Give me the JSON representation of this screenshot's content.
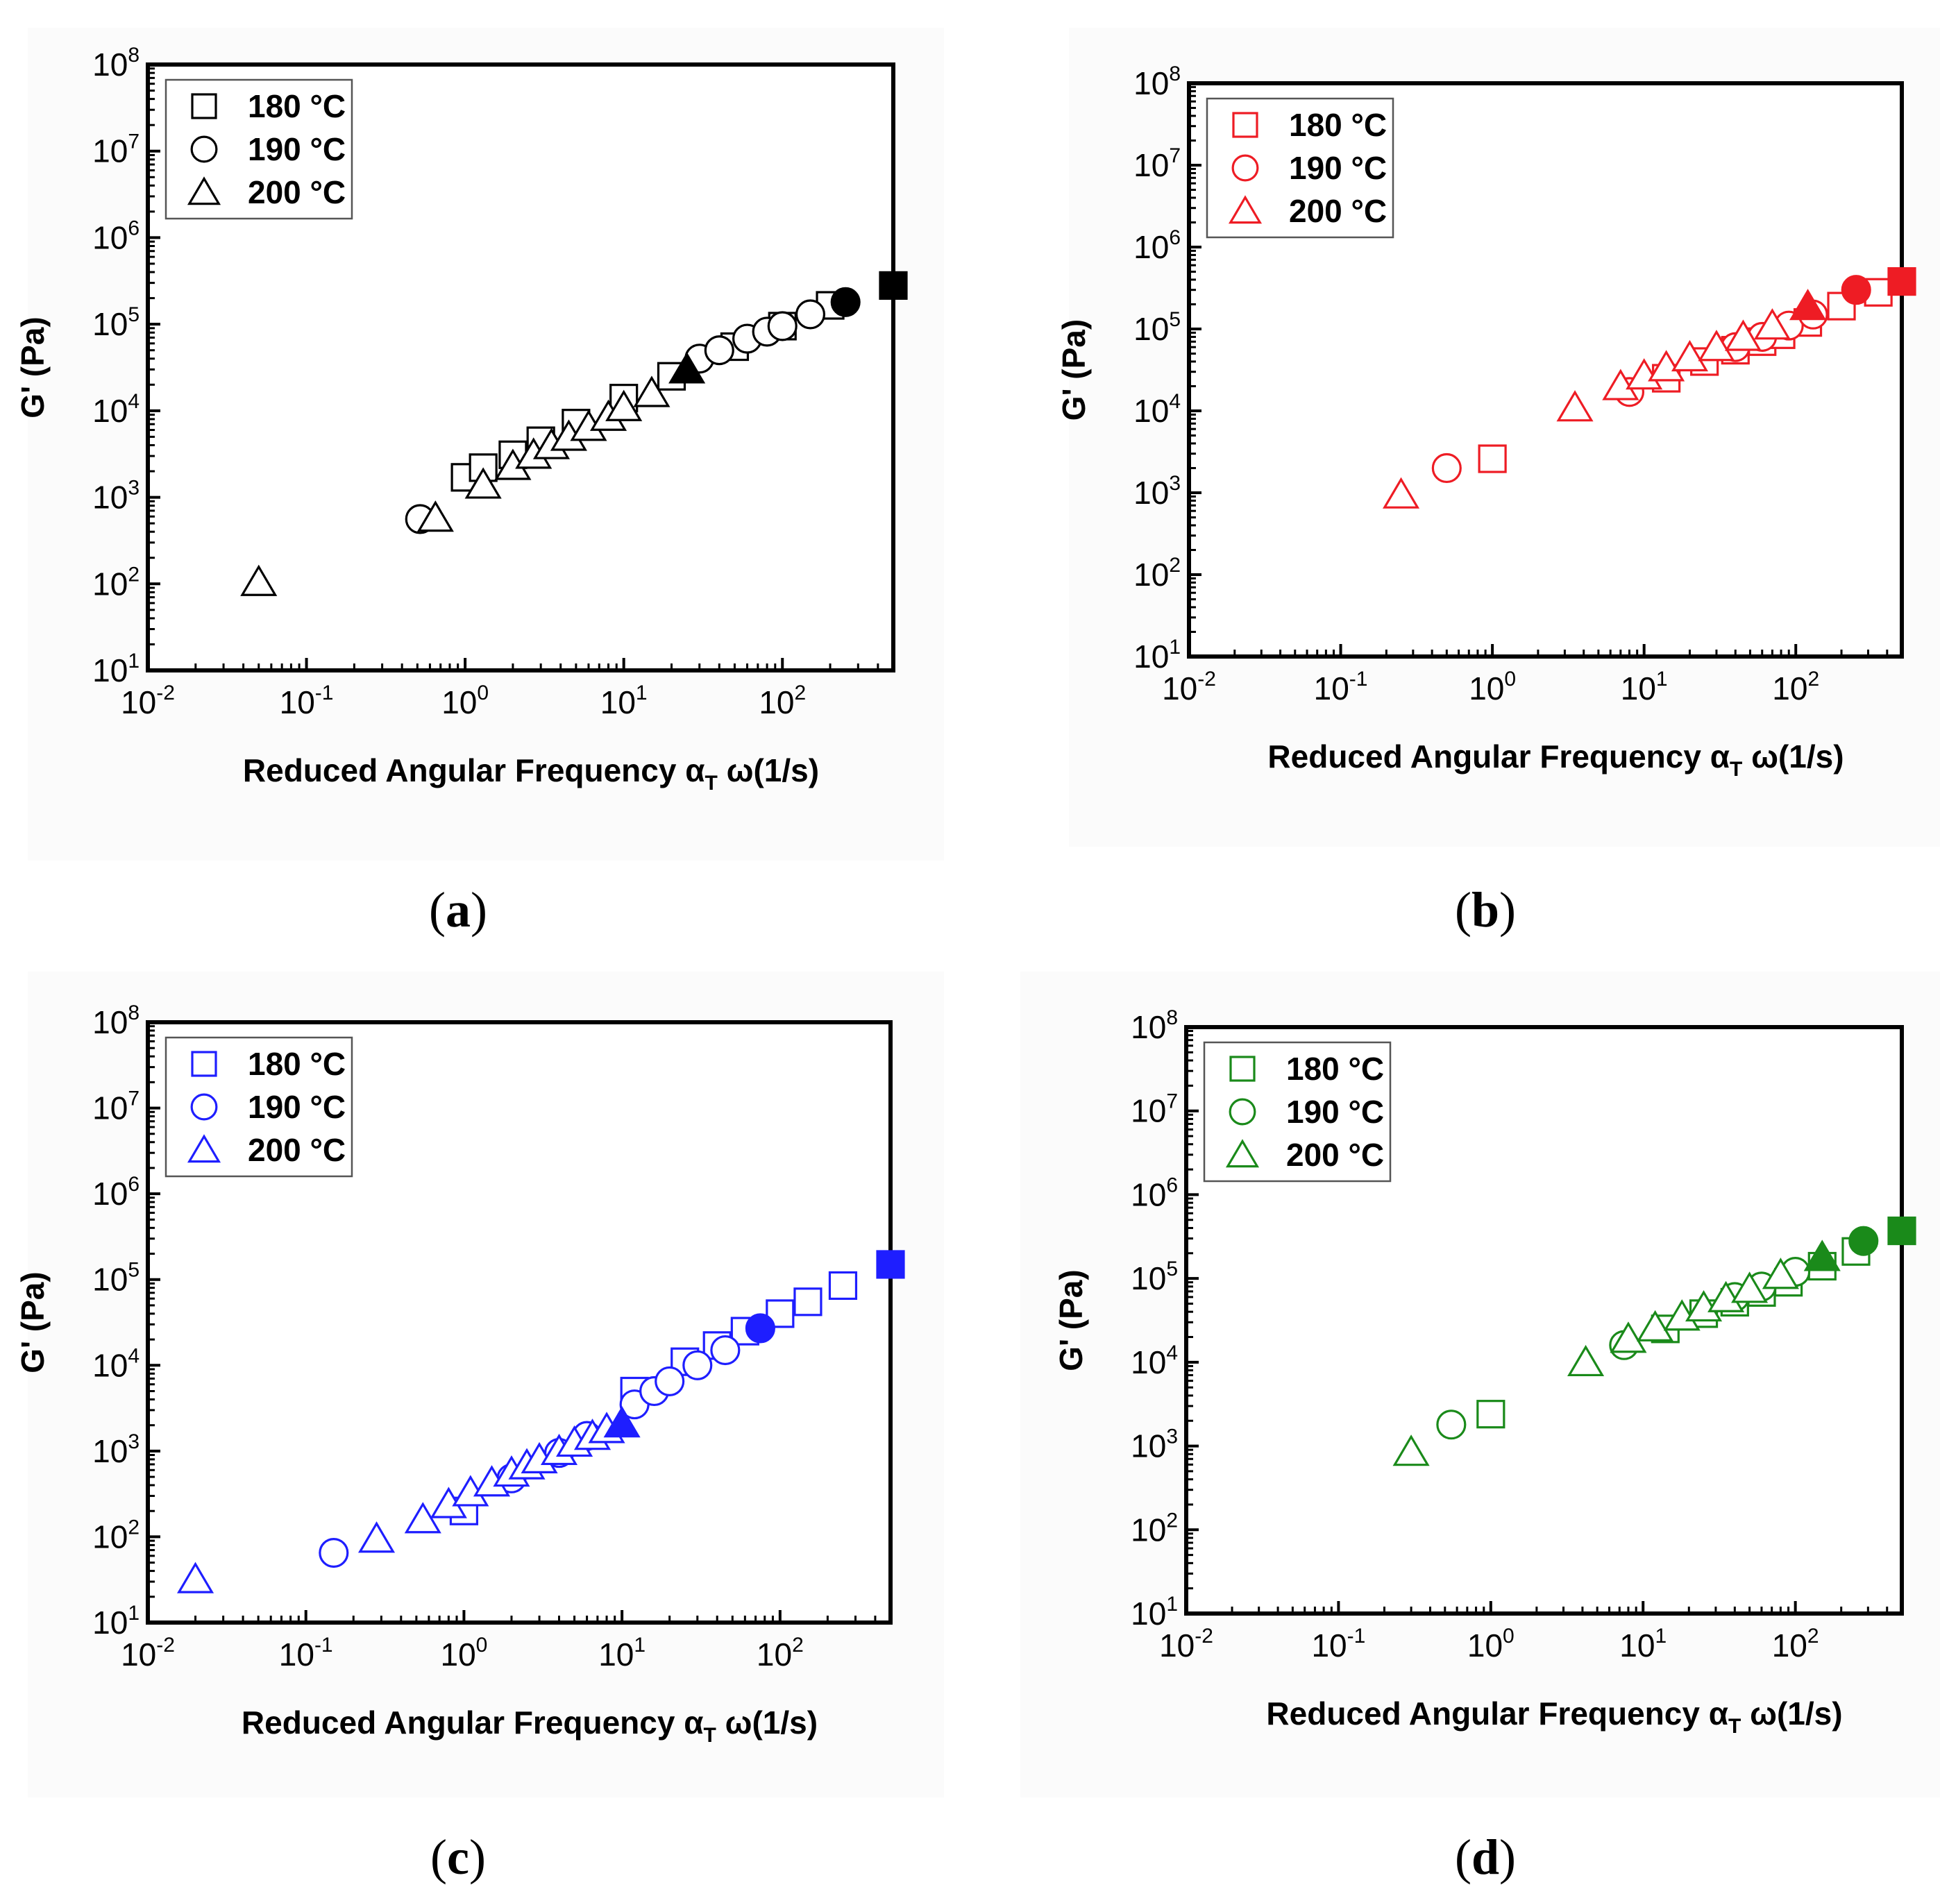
{
  "figure": {
    "caption_letters": [
      "a",
      "b",
      "c",
      "d"
    ]
  },
  "chart_data": [
    {
      "panel": "a",
      "type": "scatter",
      "xscale": "log",
      "yscale": "log",
      "xlim": [
        0.01,
        500
      ],
      "ylim": [
        10,
        100000000
      ],
      "xlabel_main": "Reduced Angular Frequency ",
      "xlabel_alpha": "α",
      "xlabel_sub": "T",
      "xlabel_rest": " ω(1/s)",
      "ylabel": "G' (Pa)",
      "xticks": [
        {
          "base": "10",
          "exp": "-2"
        },
        {
          "base": "10",
          "exp": "-1"
        },
        {
          "base": "10",
          "exp": "0"
        },
        {
          "base": "10",
          "exp": "1"
        },
        {
          "base": "10",
          "exp": "2"
        }
      ],
      "yticks": [
        {
          "base": "10",
          "exp": "1"
        },
        {
          "base": "10",
          "exp": "2"
        },
        {
          "base": "10",
          "exp": "3"
        },
        {
          "base": "10",
          "exp": "4"
        },
        {
          "base": "10",
          "exp": "5"
        },
        {
          "base": "10",
          "exp": "6"
        },
        {
          "base": "10",
          "exp": "7"
        },
        {
          "base": "10",
          "exp": "8"
        }
      ],
      "color": "#000000",
      "legend_position": "top-left",
      "series": [
        {
          "name": "180 °C",
          "marker": "square",
          "points": [
            [
              1,
              1700
            ],
            [
              1.3,
              2200
            ],
            [
              2,
              3100
            ],
            [
              3,
              4500
            ],
            [
              5,
              7200
            ],
            [
              10,
              14000
            ],
            [
              20,
              25000
            ],
            [
              50,
              55000
            ],
            [
              100,
              95000
            ],
            [
              200,
              165000
            ],
            [
              500,
              280000
            ]
          ]
        },
        {
          "name": "190 °C",
          "marker": "circle",
          "points": [
            [
              0.52,
              560
            ],
            [
              30,
              40000
            ],
            [
              40,
              50000
            ],
            [
              60,
              68000
            ],
            [
              80,
              82000
            ],
            [
              100,
              95000
            ],
            [
              150,
              130000
            ],
            [
              250,
              180000
            ]
          ]
        },
        {
          "name": "200 °C",
          "marker": "triangle",
          "points": [
            [
              0.05,
              105
            ],
            [
              0.65,
              580
            ],
            [
              1.3,
              1400
            ],
            [
              2,
              2300
            ],
            [
              2.7,
              3100
            ],
            [
              3.5,
              4000
            ],
            [
              4.5,
              5000
            ],
            [
              6,
              6500
            ],
            [
              8,
              8500
            ],
            [
              10,
              11000
            ],
            [
              15,
              16000
            ],
            [
              25,
              30000
            ]
          ]
        }
      ]
    },
    {
      "panel": "b",
      "type": "scatter",
      "xscale": "log",
      "yscale": "log",
      "xlim": [
        0.01,
        500
      ],
      "ylim": [
        10,
        100000000
      ],
      "xlabel_main": "Reduced Angular Frequency ",
      "xlabel_alpha": "α",
      "xlabel_sub": "T",
      "xlabel_rest": " ω(1/s)",
      "ylabel": "G' (Pa)",
      "xticks": [
        {
          "base": "10",
          "exp": "-2"
        },
        {
          "base": "10",
          "exp": "-1"
        },
        {
          "base": "10",
          "exp": "0"
        },
        {
          "base": "10",
          "exp": "1"
        },
        {
          "base": "10",
          "exp": "2"
        }
      ],
      "yticks": [
        {
          "base": "10",
          "exp": "1"
        },
        {
          "base": "10",
          "exp": "2"
        },
        {
          "base": "10",
          "exp": "3"
        },
        {
          "base": "10",
          "exp": "4"
        },
        {
          "base": "10",
          "exp": "5"
        },
        {
          "base": "10",
          "exp": "6"
        },
        {
          "base": "10",
          "exp": "7"
        },
        {
          "base": "10",
          "exp": "8"
        }
      ],
      "color": "#ee1c24",
      "legend_position": "top-left",
      "series": [
        {
          "name": "180 °C",
          "marker": "square",
          "points": [
            [
              1,
              2600
            ],
            [
              14,
              25000
            ],
            [
              25,
              40000
            ],
            [
              40,
              55000
            ],
            [
              60,
              70000
            ],
            [
              80,
              85000
            ],
            [
              120,
              120000
            ],
            [
              200,
              190000
            ],
            [
              350,
              280000
            ],
            [
              500,
              380000
            ]
          ]
        },
        {
          "name": "190 °C",
          "marker": "circle",
          "points": [
            [
              0.5,
              2000
            ],
            [
              8,
              17000
            ],
            [
              40,
              60000
            ],
            [
              60,
              80000
            ],
            [
              90,
              110000
            ],
            [
              130,
              150000
            ],
            [
              250,
              300000
            ]
          ]
        },
        {
          "name": "200 °C",
          "marker": "triangle",
          "points": [
            [
              0.25,
              950
            ],
            [
              3.5,
              11000
            ],
            [
              7,
              20000
            ],
            [
              10,
              27000
            ],
            [
              14,
              34000
            ],
            [
              20,
              45000
            ],
            [
              30,
              60000
            ],
            [
              45,
              80000
            ],
            [
              70,
              110000
            ],
            [
              120,
              190000
            ]
          ]
        }
      ]
    },
    {
      "panel": "c",
      "type": "scatter",
      "xscale": "log",
      "yscale": "log",
      "xlim": [
        0.01,
        500
      ],
      "ylim": [
        10,
        100000000
      ],
      "xlabel_main": "Reduced Angular Frequency ",
      "xlabel_alpha": "α",
      "xlabel_sub": "T",
      "xlabel_rest": " ω(1/s)",
      "ylabel": "G' (Pa)",
      "xticks": [
        {
          "base": "10",
          "exp": "-2"
        },
        {
          "base": "10",
          "exp": "-1"
        },
        {
          "base": "10",
          "exp": "0"
        },
        {
          "base": "10",
          "exp": "1"
        },
        {
          "base": "10",
          "exp": "2"
        }
      ],
      "yticks": [
        {
          "base": "10",
          "exp": "1"
        },
        {
          "base": "10",
          "exp": "2"
        },
        {
          "base": "10",
          "exp": "3"
        },
        {
          "base": "10",
          "exp": "4"
        },
        {
          "base": "10",
          "exp": "5"
        },
        {
          "base": "10",
          "exp": "6"
        },
        {
          "base": "10",
          "exp": "7"
        },
        {
          "base": "10",
          "exp": "8"
        }
      ],
      "color": "#1e1eff",
      "legend_position": "top-left",
      "series": [
        {
          "name": "180 °C",
          "marker": "square",
          "points": [
            [
              1,
              200
            ],
            [
              12,
              5000
            ],
            [
              25,
              11000
            ],
            [
              40,
              17000
            ],
            [
              60,
              25000
            ],
            [
              100,
              40000
            ],
            [
              150,
              55000
            ],
            [
              250,
              85000
            ],
            [
              500,
              150000
            ]
          ]
        },
        {
          "name": "190 °C",
          "marker": "circle",
          "points": [
            [
              0.15,
              65
            ],
            [
              2,
              480
            ],
            [
              4,
              950
            ],
            [
              6,
              1500
            ],
            [
              12,
              3500
            ],
            [
              16,
              5000
            ],
            [
              20,
              6500
            ],
            [
              30,
              10000
            ],
            [
              45,
              15000
            ],
            [
              75,
              27000
            ]
          ]
        },
        {
          "name": "200 °C",
          "marker": "triangle",
          "points": [
            [
              0.02,
              32
            ],
            [
              0.28,
              95
            ],
            [
              0.55,
              160
            ],
            [
              0.8,
              240
            ],
            [
              1.1,
              330
            ],
            [
              1.5,
              430
            ],
            [
              2,
              560
            ],
            [
              2.5,
              680
            ],
            [
              3,
              800
            ],
            [
              4,
              1000
            ],
            [
              5,
              1250
            ],
            [
              6.5,
              1500
            ],
            [
              8,
              1800
            ],
            [
              10,
              2100
            ]
          ]
        }
      ]
    },
    {
      "panel": "d",
      "type": "scatter",
      "xscale": "log",
      "yscale": "log",
      "xlim": [
        0.01,
        500
      ],
      "ylim": [
        10,
        100000000
      ],
      "xlabel_main": "Reduced Angular Frequency ",
      "xlabel_alpha": "α",
      "xlabel_sub": "T",
      "xlabel_rest": " ω(1/s)",
      "ylabel": "G' (Pa)",
      "xticks": [
        {
          "base": "10",
          "exp": "-2"
        },
        {
          "base": "10",
          "exp": "-1"
        },
        {
          "base": "10",
          "exp": "0"
        },
        {
          "base": "10",
          "exp": "1"
        },
        {
          "base": "10",
          "exp": "2"
        }
      ],
      "yticks": [
        {
          "base": "10",
          "exp": "1"
        },
        {
          "base": "10",
          "exp": "2"
        },
        {
          "base": "10",
          "exp": "3"
        },
        {
          "base": "10",
          "exp": "4"
        },
        {
          "base": "10",
          "exp": "5"
        },
        {
          "base": "10",
          "exp": "6"
        },
        {
          "base": "10",
          "exp": "7"
        },
        {
          "base": "10",
          "exp": "8"
        }
      ],
      "color": "#1a8a1a",
      "legend_position": "top-left",
      "series": [
        {
          "name": "180 °C",
          "marker": "square",
          "points": [
            [
              1,
              2400
            ],
            [
              14,
              25000
            ],
            [
              25,
              38000
            ],
            [
              40,
              52000
            ],
            [
              60,
              68000
            ],
            [
              90,
              90000
            ],
            [
              150,
              140000
            ],
            [
              250,
              210000
            ],
            [
              500,
              370000
            ]
          ]
        },
        {
          "name": "190 °C",
          "marker": "circle",
          "points": [
            [
              0.55,
              1800
            ],
            [
              7.5,
              16000
            ],
            [
              40,
              60000
            ],
            [
              60,
              80000
            ],
            [
              100,
              120000
            ],
            [
              280,
              280000
            ]
          ]
        },
        {
          "name": "200 °C",
          "marker": "triangle",
          "points": [
            [
              0.3,
              850
            ],
            [
              4.2,
              10000
            ],
            [
              8,
              19000
            ],
            [
              12,
              26000
            ],
            [
              18,
              35000
            ],
            [
              25,
              45000
            ],
            [
              35,
              58000
            ],
            [
              50,
              75000
            ],
            [
              80,
              110000
            ],
            [
              150,
              180000
            ]
          ]
        }
      ]
    }
  ]
}
